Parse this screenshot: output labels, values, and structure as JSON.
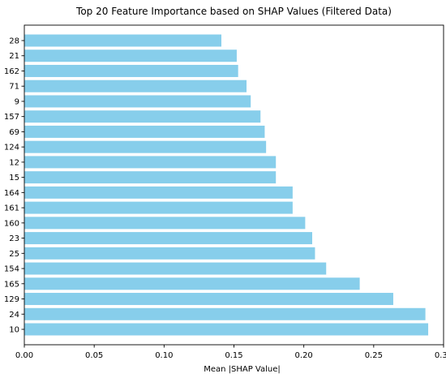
{
  "chart_data": {
    "type": "bar",
    "orientation": "horizontal",
    "title": "Top 20 Feature Importance based on SHAP Values (Filtered Data)",
    "xlabel": "Mean |SHAP Value|",
    "ylabel": "",
    "xlim": [
      0.0,
      0.3
    ],
    "xticks": [
      "0.00",
      "0.05",
      "0.10",
      "0.15",
      "0.20",
      "0.25",
      "0.30"
    ],
    "xtick_values": [
      0.0,
      0.05,
      0.1,
      0.15,
      0.2,
      0.25,
      0.3
    ],
    "categories": [
      "28",
      "21",
      "162",
      "71",
      "9",
      "157",
      "69",
      "124",
      "12",
      "15",
      "164",
      "161",
      "160",
      "23",
      "25",
      "154",
      "165",
      "129",
      "24",
      "10"
    ],
    "values": [
      0.141,
      0.152,
      0.153,
      0.159,
      0.162,
      0.169,
      0.172,
      0.173,
      0.18,
      0.18,
      0.192,
      0.192,
      0.201,
      0.206,
      0.208,
      0.216,
      0.24,
      0.264,
      0.287,
      0.289
    ],
    "grid": false,
    "bar_color": "#87ceeb"
  }
}
